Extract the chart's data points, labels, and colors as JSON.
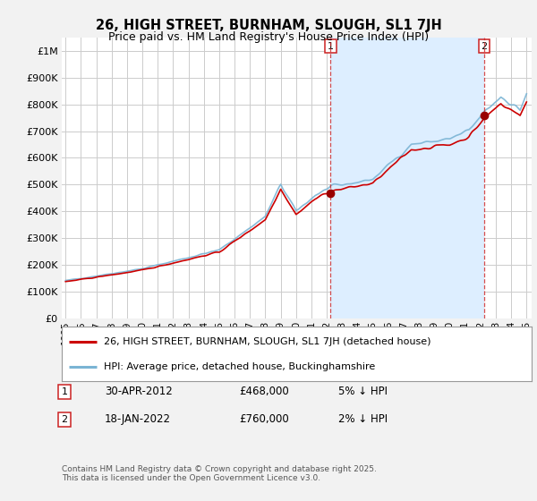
{
  "title": "26, HIGH STREET, BURNHAM, SLOUGH, SL1 7JH",
  "subtitle": "Price paid vs. HM Land Registry's House Price Index (HPI)",
  "background_color": "#f2f2f2",
  "plot_background": "#ffffff",
  "shade_color": "#ddeeff",
  "grid_color": "#cccccc",
  "hpi_color": "#7ab4d4",
  "price_color": "#cc0000",
  "dot_color": "#990000",
  "marker1_month_idx": 207,
  "marker2_month_idx": 327,
  "marker1_label": "30-APR-2012",
  "marker1_price": "£468,000",
  "marker1_price_val": 468000,
  "marker1_pct": "5% ↓ HPI",
  "marker2_label": "18-JAN-2022",
  "marker2_price": "£760,000",
  "marker2_price_val": 760000,
  "marker2_pct": "2% ↓ HPI",
  "legend_line1": "26, HIGH STREET, BURNHAM, SLOUGH, SL1 7JH (detached house)",
  "legend_line2": "HPI: Average price, detached house, Buckinghamshire",
  "footer": "Contains HM Land Registry data © Crown copyright and database right 2025.\nThis data is licensed under the Open Government Licence v3.0.",
  "ylim": [
    0,
    1050000
  ],
  "yticks": [
    0,
    100000,
    200000,
    300000,
    400000,
    500000,
    600000,
    700000,
    800000,
    900000,
    1000000
  ],
  "start_year": 1995,
  "end_year": 2025,
  "n_months": 361
}
